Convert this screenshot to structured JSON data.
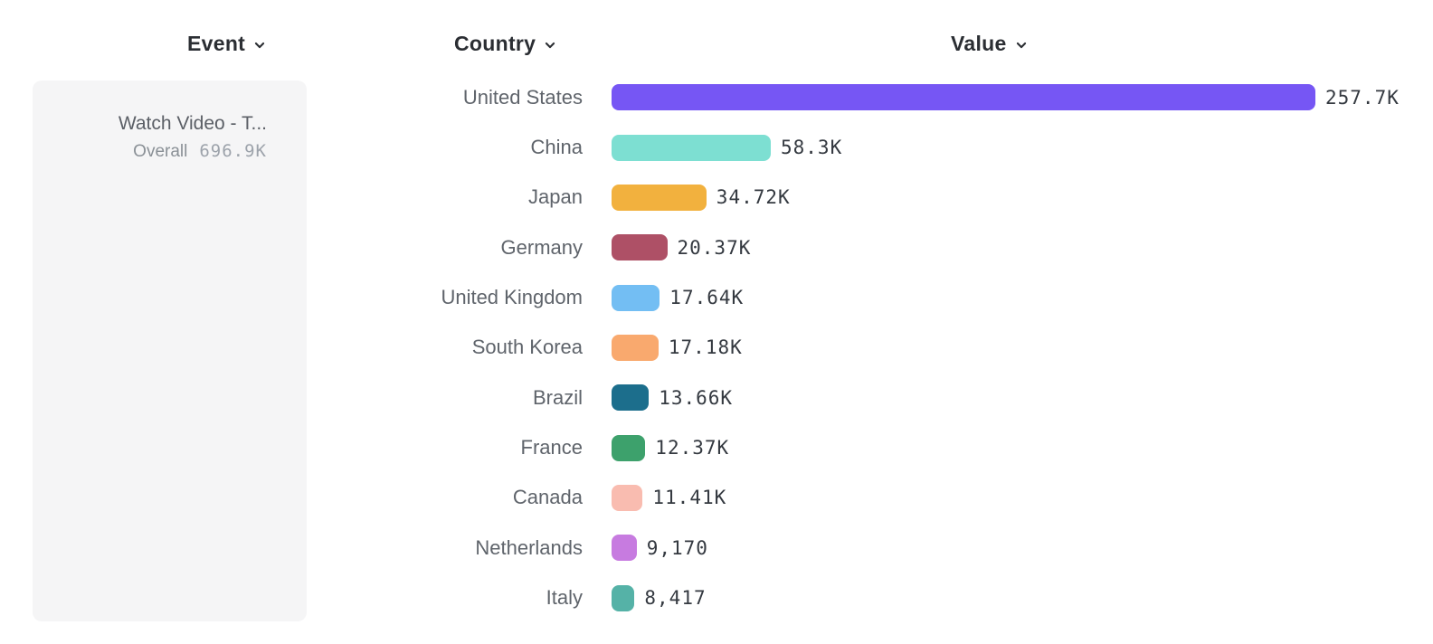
{
  "columns": [
    {
      "id": "event",
      "label": "Event"
    },
    {
      "id": "country",
      "label": "Country"
    },
    {
      "id": "value",
      "label": "Value"
    }
  ],
  "event_card": {
    "event_name": "Watch Video - T...",
    "metric_label": "Overall",
    "metric_value": "696.9K"
  },
  "icons": {
    "header_dropdown": "chevron-down-icon"
  },
  "chart_data": {
    "type": "bar",
    "orientation": "horizontal",
    "xlabel": "Value",
    "ylabel": "Country",
    "xlim": [
      0,
      257700
    ],
    "grid": false,
    "legend": false,
    "categories": [
      "United States",
      "China",
      "Japan",
      "Germany",
      "United Kingdom",
      "South Korea",
      "Brazil",
      "France",
      "Canada",
      "Netherlands",
      "Italy"
    ],
    "values": [
      257700,
      58300,
      34720,
      20370,
      17640,
      17180,
      13660,
      12370,
      11410,
      9170,
      8417
    ],
    "value_labels": [
      "257.7K",
      "58.3K",
      "34.72K",
      "20.37K",
      "17.64K",
      "17.18K",
      "13.66K",
      "12.37K",
      "11.41K",
      "9,170",
      "8,417"
    ],
    "bar_colors": [
      "#7656f4",
      "#7ddfd2",
      "#f2b13e",
      "#ae5066",
      "#73bef3",
      "#f9a96e",
      "#1c6e8c",
      "#3da16c",
      "#f9bcb0",
      "#c77be0",
      "#55b2a7"
    ]
  }
}
